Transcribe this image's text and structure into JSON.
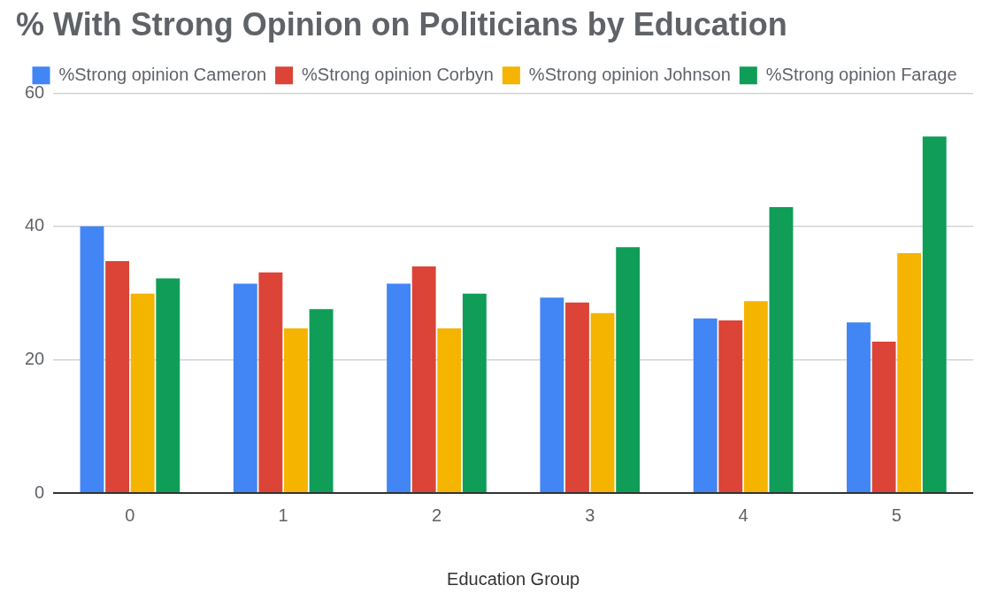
{
  "chart_data": {
    "type": "bar",
    "title": "% With Strong Opinion on Politicians by Education",
    "xlabel": "Education Group",
    "categories": [
      "0",
      "1",
      "2",
      "3",
      "4",
      "5"
    ],
    "series": [
      {
        "name": "%Strong opinion Cameron",
        "color": "#4285f4",
        "values": [
          40.0,
          31.4,
          31.4,
          29.3,
          26.2,
          25.6
        ]
      },
      {
        "name": "%Strong opinion Corbyn",
        "color": "#db4437",
        "values": [
          34.8,
          33.1,
          34.0,
          28.6,
          25.9,
          22.7
        ]
      },
      {
        "name": "%Strong opinion Johnson",
        "color": "#f4b400",
        "values": [
          29.9,
          24.7,
          24.7,
          27.0,
          28.8,
          36.0
        ]
      },
      {
        "name": "%Strong opinion Farage",
        "color": "#0f9d58",
        "values": [
          32.2,
          27.6,
          29.9,
          36.9,
          42.9,
          53.5
        ]
      }
    ],
    "ylim": [
      0,
      60
    ],
    "yticks": [
      0,
      20,
      40,
      60
    ],
    "grid": "y",
    "legend": "top"
  }
}
